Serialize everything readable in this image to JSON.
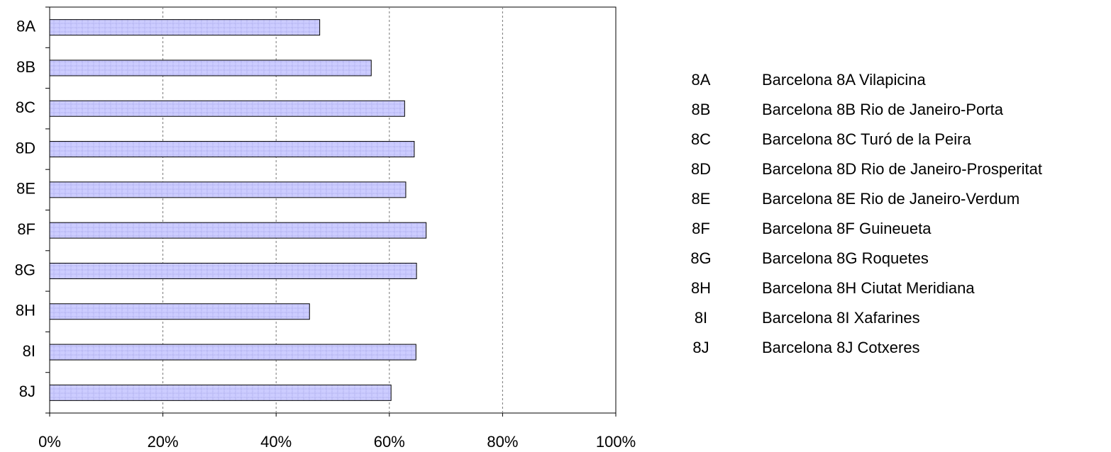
{
  "chart_data": {
    "type": "bar",
    "orientation": "horizontal",
    "categories": [
      "8A",
      "8B",
      "8C",
      "8D",
      "8E",
      "8F",
      "8G",
      "8H",
      "8I",
      "8J"
    ],
    "values": [
      47.7,
      56.8,
      62.7,
      64.4,
      62.9,
      66.5,
      64.8,
      45.9,
      64.7,
      60.3
    ],
    "color": "#ccccff",
    "xlim": [
      0,
      100
    ],
    "xticks": [
      {
        "value": 0,
        "label": "0%"
      },
      {
        "value": 20,
        "label": "20%"
      },
      {
        "value": 40,
        "label": "40%"
      },
      {
        "value": 60,
        "label": "60%"
      },
      {
        "value": 80,
        "label": "80%"
      },
      {
        "value": 100,
        "label": "100%"
      }
    ],
    "grid": true,
    "key": [
      "Barcelona 8A Vilapicina",
      "Barcelona 8B Rio de Janeiro-Porta",
      "Barcelona 8C Turó de la Peira",
      "Barcelona 8D Rio de Janeiro-Prosperitat",
      "Barcelona 8E Rio de Janeiro-Verdum",
      "Barcelona 8F Guineueta",
      "Barcelona 8G Roquetes",
      "Barcelona 8H Ciutat Meridiana",
      "Barcelona 8I Xafarines",
      "Barcelona 8J Cotxeres"
    ]
  }
}
